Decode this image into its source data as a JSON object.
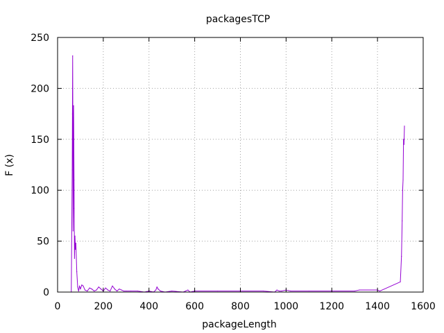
{
  "chart_data": {
    "type": "line",
    "title": "packagesTCP",
    "xlabel": "packageLength",
    "ylabel": "F (x)",
    "xlim": [
      0,
      1600
    ],
    "ylim": [
      0,
      250
    ],
    "x_ticks": [
      0,
      200,
      400,
      600,
      800,
      1000,
      1200,
      1400,
      1600
    ],
    "y_ticks": [
      0,
      50,
      100,
      150,
      200,
      250
    ],
    "grid": true,
    "legend": "none",
    "series": [
      {
        "color": "#9400d3",
        "x": [
          60,
          64,
          65,
          66,
          67,
          68,
          69,
          70,
          71,
          72,
          74,
          76,
          78,
          80,
          84,
          88,
          92,
          96,
          100,
          106,
          112,
          120,
          130,
          140,
          150,
          160,
          170,
          180,
          190,
          200,
          210,
          220,
          230,
          240,
          250,
          260,
          270,
          280,
          290,
          300,
          320,
          350,
          380,
          400,
          420,
          430,
          435,
          440,
          450,
          470,
          500,
          550,
          560,
          570,
          580,
          600,
          700,
          800,
          900,
          950,
          960,
          970,
          980,
          1000,
          1020,
          1100,
          1200,
          1300,
          1320,
          1400,
          1410,
          1500,
          1505,
          1508,
          1510,
          1512,
          1514,
          1516,
          1518
        ],
        "y": [
          0,
          120,
          175,
          232,
          160,
          60,
          82,
          183,
          150,
          110,
          33,
          55,
          42,
          48,
          20,
          5,
          1,
          6,
          3,
          7,
          6,
          2,
          1,
          4,
          3,
          1,
          2,
          5,
          3,
          1,
          4,
          2,
          1,
          6,
          3,
          1,
          3,
          2,
          1,
          1,
          1,
          1,
          0,
          1,
          0,
          2,
          5,
          3,
          1,
          0,
          1,
          0,
          1,
          2,
          0,
          1,
          1,
          1,
          1,
          0,
          2,
          1,
          1,
          2,
          1,
          1,
          1,
          1,
          2,
          2,
          1,
          10,
          35,
          70,
          100,
          110,
          150,
          145,
          163
        ]
      }
    ]
  }
}
